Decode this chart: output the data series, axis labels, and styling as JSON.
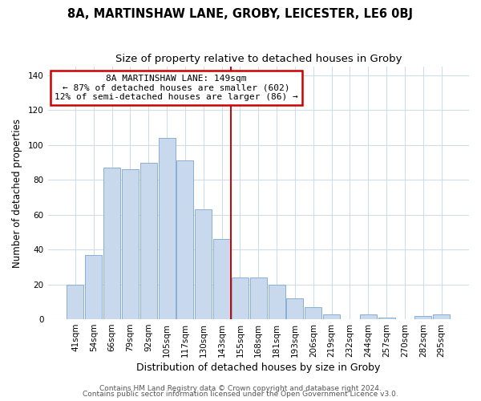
{
  "title1": "8A, MARTINSHAW LANE, GROBY, LEICESTER, LE6 0BJ",
  "title2": "Size of property relative to detached houses in Groby",
  "xlabel": "Distribution of detached houses by size in Groby",
  "ylabel": "Number of detached properties",
  "categories": [
    "41sqm",
    "54sqm",
    "66sqm",
    "79sqm",
    "92sqm",
    "105sqm",
    "117sqm",
    "130sqm",
    "143sqm",
    "155sqm",
    "168sqm",
    "181sqm",
    "193sqm",
    "206sqm",
    "219sqm",
    "232sqm",
    "244sqm",
    "257sqm",
    "270sqm",
    "282sqm",
    "295sqm"
  ],
  "values": [
    20,
    37,
    87,
    86,
    90,
    104,
    91,
    63,
    46,
    24,
    24,
    20,
    12,
    7,
    3,
    0,
    3,
    1,
    0,
    2,
    3
  ],
  "bar_color": "#c8d9ee",
  "bar_edge_color": "#8aafd4",
  "reference_line_x": 8.5,
  "reference_line_color": "#cc0000",
  "annotation_title": "8A MARTINSHAW LANE: 149sqm",
  "annotation_line1": "← 87% of detached houses are smaller (602)",
  "annotation_line2": "12% of semi-detached houses are larger (86) →",
  "annotation_box_color": "#ffffff",
  "annotation_box_edge_color": "#cc0000",
  "ylim": [
    0,
    145
  ],
  "yticks": [
    0,
    20,
    40,
    60,
    80,
    100,
    120,
    140
  ],
  "footer1": "Contains HM Land Registry data © Crown copyright and database right 2024.",
  "footer2": "Contains public sector information licensed under the Open Government Licence v3.0.",
  "plot_bg_color": "#ffffff",
  "fig_bg_color": "#ffffff",
  "grid_color": "#d0dce8",
  "title1_fontsize": 10.5,
  "title2_fontsize": 9.5,
  "xlabel_fontsize": 9,
  "ylabel_fontsize": 8.5,
  "tick_fontsize": 7.5,
  "annotation_fontsize": 8,
  "footer_fontsize": 6.5
}
